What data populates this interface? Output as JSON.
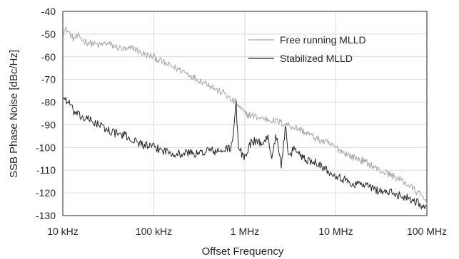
{
  "chart_data": {
    "type": "line",
    "title": "",
    "xlabel": "Offset Frequency",
    "ylabel": "SSB Phase Noise [dBc/Hz]",
    "x_scale": "log",
    "xlim": [
      10000,
      100000000
    ],
    "ylim": [
      -130,
      -40
    ],
    "x_ticks": [
      {
        "value": 10000,
        "label": "10 kHz"
      },
      {
        "value": 100000,
        "label": "100 kHz"
      },
      {
        "value": 1000000,
        "label": "1 MHz"
      },
      {
        "value": 10000000,
        "label": "10 MHz"
      },
      {
        "value": 100000000,
        "label": "100 MHz"
      }
    ],
    "y_ticks": [
      -40,
      -50,
      -60,
      -70,
      -80,
      -90,
      -100,
      -110,
      -120,
      -130
    ],
    "grid": true,
    "legend_position": "top-right",
    "series": [
      {
        "name": "Free running MLLD",
        "color": "#a6a6a6",
        "x": [
          10000,
          11000,
          12000,
          13000,
          15000,
          17000,
          20000,
          25000,
          30000,
          40000,
          50000,
          60000,
          70000,
          80000,
          100000,
          120000,
          150000,
          200000,
          250000,
          300000,
          400000,
          500000,
          600000,
          700000,
          800000,
          900000,
          1000000,
          1200000,
          1500000,
          2000000,
          2500000,
          3000000,
          4000000,
          5000000,
          6000000,
          8000000,
          10000000,
          12000000,
          15000000,
          20000000,
          25000000,
          30000000,
          40000000,
          50000000,
          60000000,
          70000000,
          80000000,
          90000000,
          100000000
        ],
        "y": [
          -49,
          -48,
          -50,
          -52,
          -51,
          -53,
          -54,
          -55,
          -54,
          -56,
          -57,
          -56,
          -58,
          -59,
          -60,
          -62,
          -64,
          -66,
          -68,
          -70,
          -72,
          -75,
          -76,
          -79,
          -80,
          -83,
          -85,
          -86,
          -87,
          -88,
          -89,
          -90,
          -92,
          -94,
          -96,
          -98,
          -100,
          -102,
          -104,
          -106,
          -108,
          -110,
          -112,
          -114,
          -116,
          -118,
          -120,
          -122,
          -124
        ]
      },
      {
        "name": "Stabilized MLLD",
        "color": "#262626",
        "x": [
          10000,
          11000,
          12000,
          13000,
          15000,
          17000,
          20000,
          25000,
          30000,
          40000,
          50000,
          60000,
          70000,
          80000,
          100000,
          120000,
          150000,
          200000,
          250000,
          300000,
          400000,
          500000,
          600000,
          700000,
          750000,
          800000,
          820000,
          850000,
          900000,
          1000000,
          1200000,
          1500000,
          1800000,
          2000000,
          2200000,
          2500000,
          2800000,
          3000000,
          3500000,
          4000000,
          5000000,
          6000000,
          8000000,
          10000000,
          12000000,
          15000000,
          20000000,
          25000000,
          30000000,
          40000000,
          50000000,
          60000000,
          70000000,
          80000000,
          90000000,
          100000000
        ],
        "y": [
          -78,
          -79,
          -81,
          -84,
          -86,
          -87,
          -88,
          -90,
          -92,
          -94,
          -95,
          -97,
          -98,
          -99,
          -100,
          -101,
          -102,
          -103,
          -102,
          -103,
          -101,
          -102,
          -101,
          -100,
          -95,
          -79,
          -90,
          -99,
          -102,
          -104,
          -97,
          -98,
          -96,
          -104,
          -94,
          -108,
          -91,
          -105,
          -100,
          -103,
          -106,
          -106,
          -110,
          -112,
          -114,
          -116,
          -116,
          -118,
          -119,
          -120,
          -121,
          -122,
          -123,
          -124,
          -126,
          -127
        ]
      }
    ]
  }
}
